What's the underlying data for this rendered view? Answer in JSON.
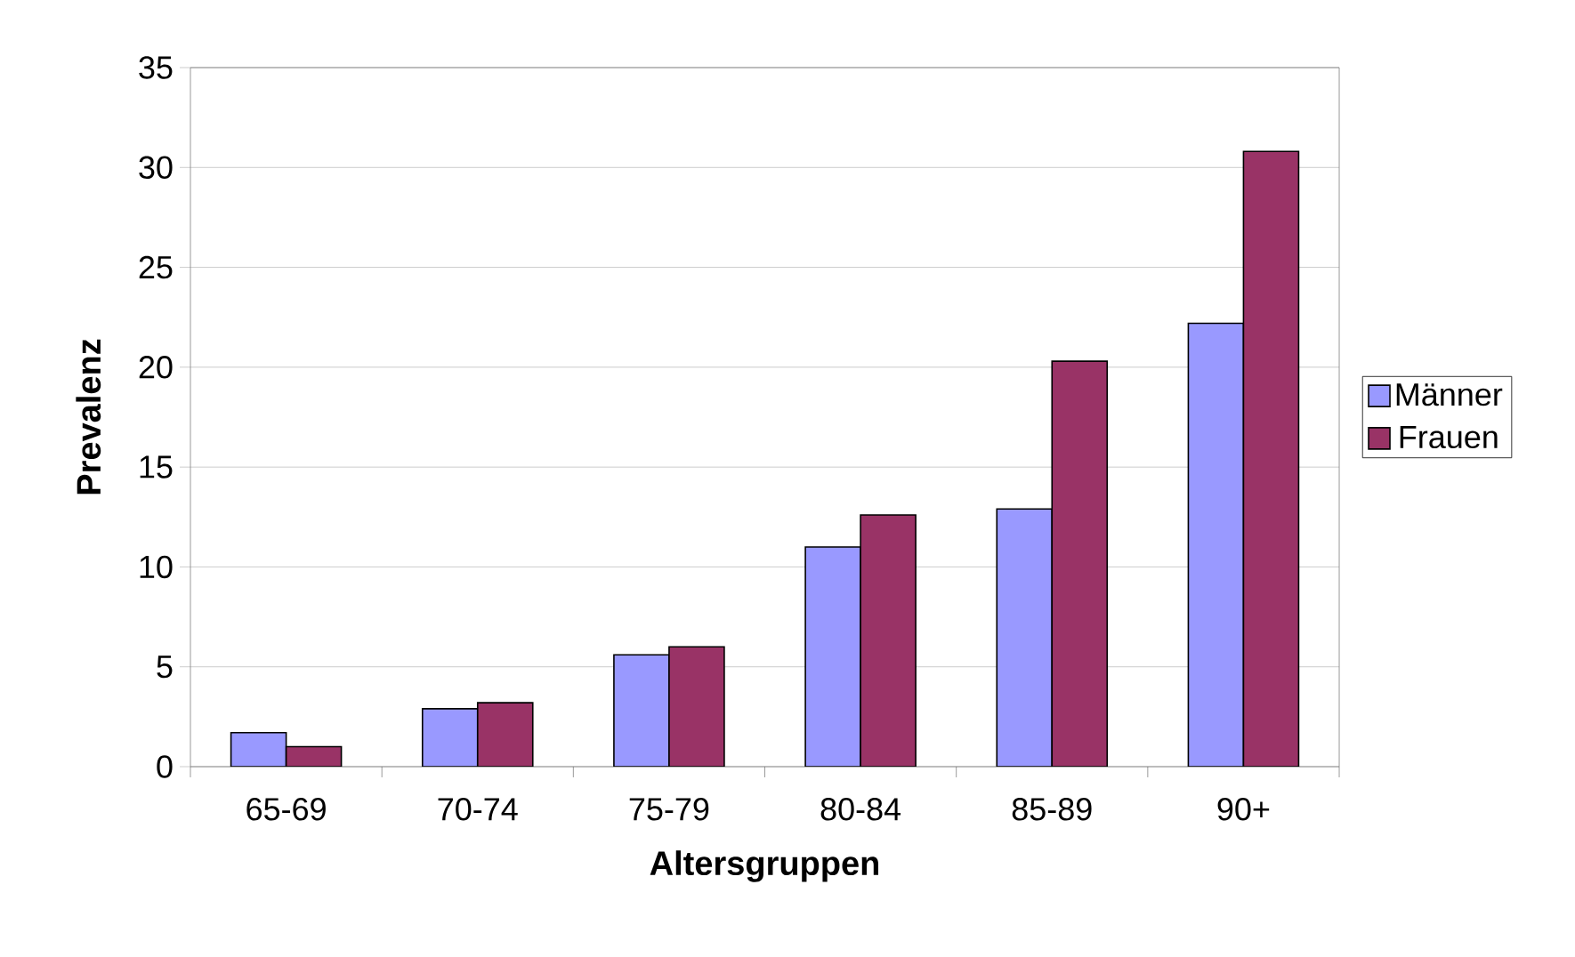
{
  "chart_data": {
    "type": "bar",
    "xlabel": "Altersgruppen",
    "ylabel": "Prevalenz",
    "categories": [
      "65-69",
      "70-74",
      "75-79",
      "80-84",
      "85-89",
      "90+"
    ],
    "series": [
      {
        "name": "Männer",
        "color": "#9999ff",
        "values": [
          1.7,
          2.9,
          5.6,
          11.0,
          12.9,
          22.2
        ]
      },
      {
        "name": "Frauen",
        "color": "#993366",
        "values": [
          1.0,
          3.2,
          6.0,
          12.6,
          20.3,
          30.8
        ]
      }
    ],
    "ylim": [
      0,
      35
    ],
    "yticks": [
      0,
      5,
      10,
      15,
      20,
      25,
      30,
      35
    ],
    "grid": "y",
    "legend": "right"
  }
}
